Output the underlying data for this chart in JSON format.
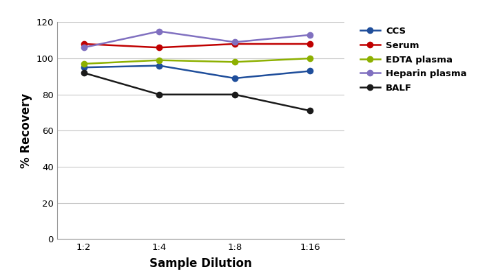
{
  "x_labels": [
    "1:2",
    "1:4",
    "1:8",
    "1:16"
  ],
  "x_positions": [
    0,
    1,
    2,
    3
  ],
  "series": [
    {
      "name": "CCS",
      "color": "#1F4E9B",
      "marker": "o",
      "values": [
        95,
        96,
        89,
        93
      ]
    },
    {
      "name": "Serum",
      "color": "#C00000",
      "marker": "o",
      "values": [
        108,
        106,
        108,
        108
      ]
    },
    {
      "name": "EDTA plasma",
      "color": "#8DB000",
      "marker": "o",
      "values": [
        97,
        99,
        98,
        100
      ]
    },
    {
      "name": "Heparin plasma",
      "color": "#8070C0",
      "marker": "o",
      "values": [
        106,
        115,
        109,
        113
      ]
    },
    {
      "name": "BALF",
      "color": "#1A1A1A",
      "marker": "o",
      "values": [
        92,
        80,
        80,
        71
      ]
    }
  ],
  "ylabel": "% Recovery",
  "xlabel": "Sample Dilution",
  "ylim": [
    0,
    120
  ],
  "yticks": [
    0,
    20,
    40,
    60,
    80,
    100,
    120
  ],
  "grid_color": "#c8c8c8",
  "background_color": "#ffffff",
  "legend_fontsize": 9.5,
  "axis_label_fontsize": 12,
  "tick_fontsize": 9.5,
  "figsize": [
    6.94,
    4.05
  ],
  "dpi": 100
}
